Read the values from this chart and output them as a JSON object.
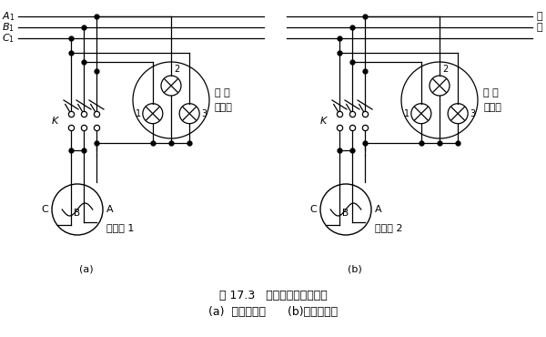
{
  "title": "图 17.3   三相同步发电机整步",
  "subtitle": "(a)  灯光明暗法      (b)灯光旋转法",
  "label_a": "(a)",
  "label_b": "(b)",
  "label_A1": "$A_1$",
  "label_B1": "$B_1$",
  "label_C1": "$C_1$",
  "label_dian": "电",
  "label_wang": "网",
  "label_K": "K",
  "label_C": "C",
  "label_B": "B",
  "label_A": "A",
  "label_gen1": "发电机 1",
  "label_gen2": "发电机 2",
  "label_tongbu1": "同 步",
  "label_tongbu2": "指示灯",
  "bg": "#ffffff",
  "lc": "#000000",
  "lw": 0.9
}
